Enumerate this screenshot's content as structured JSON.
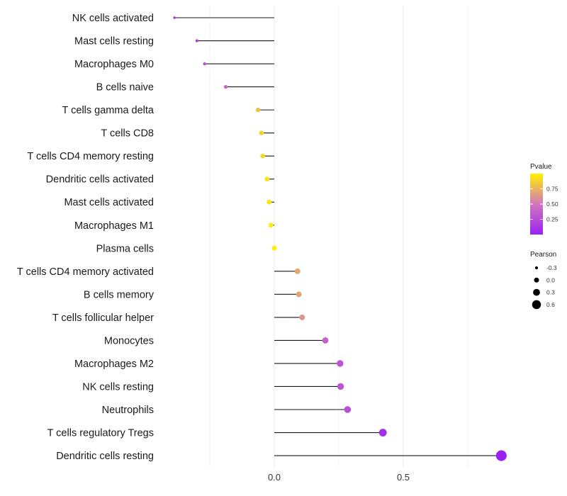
{
  "chart_data": {
    "type": "lollipop",
    "title": "",
    "xlabel": "",
    "ylabel": "",
    "xlim": [
      -0.38,
      0.9
    ],
    "x_ticks": [
      0.0,
      0.5
    ],
    "x_tick_labels": [
      "0.0",
      "0.5"
    ],
    "categories": [
      "NK cells activated",
      "Mast cells resting",
      "Macrophages M0",
      "B cells naive",
      "T cells gamma delta",
      "T cells CD8",
      "T cells CD4 memory resting",
      "Dendritic cells activated",
      "Mast cells activated",
      "Macrophages M1",
      "Plasma cells",
      "T cells CD4 memory activated",
      "B cells memory",
      "T cells follicular helper",
      "Monocytes",
      "Macrophages M2",
      "NK cells resting",
      "Neutrophils",
      "T cells regulatory  Tregs",
      "Dendritic cells resting"
    ],
    "pearson": [
      -0.387,
      -0.3,
      -0.27,
      -0.188,
      -0.063,
      -0.05,
      -0.045,
      -0.028,
      -0.02,
      -0.013,
      0.0,
      0.09,
      0.095,
      0.108,
      0.198,
      0.255,
      0.257,
      0.284,
      0.421,
      0.88
    ],
    "pvalue": [
      0.1,
      0.2,
      0.3,
      0.4,
      0.8,
      0.88,
      0.9,
      0.93,
      0.96,
      0.98,
      0.99,
      0.7,
      0.68,
      0.62,
      0.38,
      0.3,
      0.3,
      0.27,
      0.08,
      0.0
    ],
    "legend_color": {
      "title": "Pvalue",
      "tick_values": [
        0.75,
        0.5,
        0.25
      ],
      "tick_labels": [
        "0.75",
        "0.50",
        "0.25"
      ],
      "range": [
        0.0,
        1.0
      ],
      "low_color": "#9b21f2",
      "mid_color": "#d276be",
      "high_color": "#fff200"
    },
    "legend_size": {
      "title": "Pearson",
      "values": [
        -0.3,
        0.0,
        0.3,
        0.6
      ],
      "labels": [
        "-0.3",
        "0.0",
        "0.3",
        "0.6"
      ]
    },
    "legend_position": "right",
    "grid": true
  }
}
